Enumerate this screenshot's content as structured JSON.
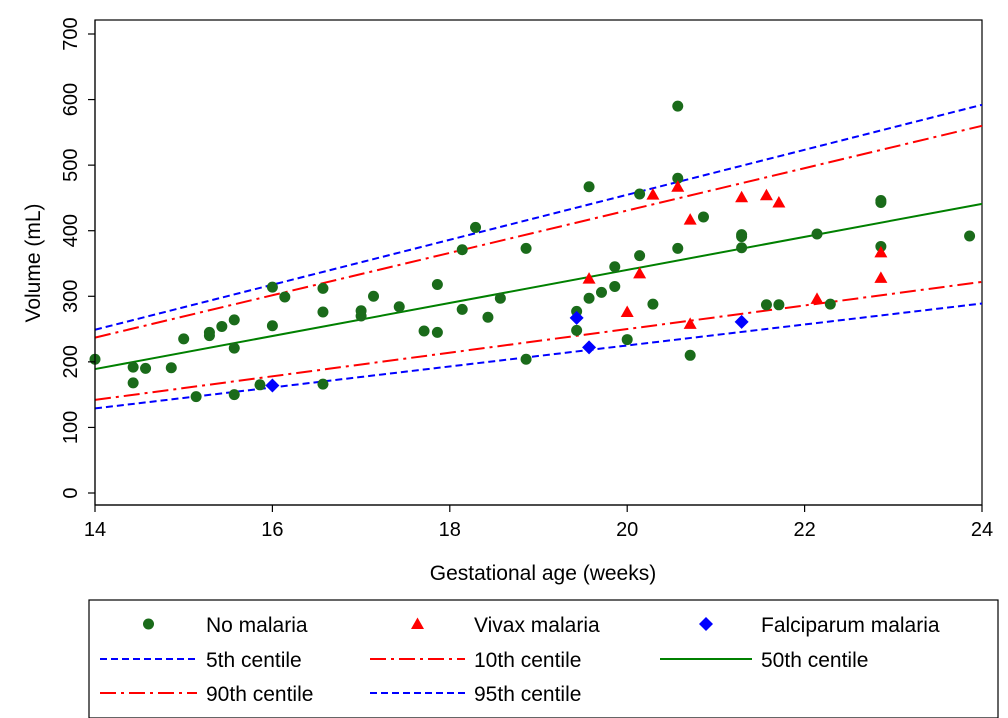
{
  "chart_data": {
    "type": "scatter",
    "title": "",
    "xlabel": "Gestational age (weeks)",
    "ylabel": "Volume (mL)",
    "xlim": [
      14,
      24
    ],
    "ylim": [
      0,
      700
    ],
    "xticks": [
      14,
      16,
      18,
      20,
      22,
      24
    ],
    "yticks": [
      0,
      100,
      200,
      300,
      400,
      500,
      600,
      700
    ],
    "grid": false,
    "legend_position": "bottom",
    "series": [
      {
        "name": "No malaria",
        "kind": "scatter",
        "marker": "circle",
        "color": "#1a6b1a",
        "points": [
          [
            14.0,
            204
          ],
          [
            14.43,
            168
          ],
          [
            14.43,
            192
          ],
          [
            14.57,
            190
          ],
          [
            14.86,
            191
          ],
          [
            15.0,
            235
          ],
          [
            15.14,
            147
          ],
          [
            15.29,
            240
          ],
          [
            15.29,
            245
          ],
          [
            15.43,
            254
          ],
          [
            15.57,
            264
          ],
          [
            15.57,
            221
          ],
          [
            15.57,
            150
          ],
          [
            15.86,
            165
          ],
          [
            16.0,
            255
          ],
          [
            16.0,
            314
          ],
          [
            16.14,
            299
          ],
          [
            16.57,
            312
          ],
          [
            16.57,
            276
          ],
          [
            16.57,
            166
          ],
          [
            17.0,
            278
          ],
          [
            17.0,
            270
          ],
          [
            17.14,
            300
          ],
          [
            17.43,
            284
          ],
          [
            17.71,
            247
          ],
          [
            17.86,
            245
          ],
          [
            17.86,
            318
          ],
          [
            18.14,
            280
          ],
          [
            18.14,
            371
          ],
          [
            18.29,
            405
          ],
          [
            18.43,
            268
          ],
          [
            18.57,
            297
          ],
          [
            18.86,
            373
          ],
          [
            18.86,
            204
          ],
          [
            19.43,
            277
          ],
          [
            19.43,
            248
          ],
          [
            19.57,
            297
          ],
          [
            19.57,
            467
          ],
          [
            19.71,
            306
          ],
          [
            19.86,
            315
          ],
          [
            19.86,
            345
          ],
          [
            20.0,
            234
          ],
          [
            20.14,
            362
          ],
          [
            20.14,
            456
          ],
          [
            20.29,
            288
          ],
          [
            20.57,
            590
          ],
          [
            20.57,
            480
          ],
          [
            20.57,
            373
          ],
          [
            20.71,
            210
          ],
          [
            20.86,
            421
          ],
          [
            21.29,
            391
          ],
          [
            21.29,
            394
          ],
          [
            21.29,
            374
          ],
          [
            21.57,
            287
          ],
          [
            21.71,
            287
          ],
          [
            22.14,
            395
          ],
          [
            22.29,
            288
          ],
          [
            22.86,
            443
          ],
          [
            22.86,
            446
          ],
          [
            22.86,
            376
          ],
          [
            23.86,
            392
          ]
        ]
      },
      {
        "name": "Vivax malaria",
        "kind": "scatter",
        "marker": "triangle",
        "color": "#ff0000",
        "points": [
          [
            19.57,
            327
          ],
          [
            20.0,
            276
          ],
          [
            20.14,
            335
          ],
          [
            20.29,
            455
          ],
          [
            20.57,
            467
          ],
          [
            20.71,
            258
          ],
          [
            20.71,
            417
          ],
          [
            21.29,
            451
          ],
          [
            21.57,
            454
          ],
          [
            21.71,
            443
          ],
          [
            22.14,
            296
          ],
          [
            22.86,
            367
          ],
          [
            22.86,
            328
          ]
        ]
      },
      {
        "name": "Falciparum malaria",
        "kind": "scatter",
        "marker": "diamond",
        "color": "#0000ff",
        "points": [
          [
            16.0,
            164
          ],
          [
            19.43,
            267
          ],
          [
            19.57,
            222
          ],
          [
            21.29,
            261
          ]
        ]
      },
      {
        "name": "5th centile",
        "kind": "line",
        "style": "dash",
        "color": "#0000ff",
        "points": [
          [
            14,
            129
          ],
          [
            24,
            289
          ]
        ]
      },
      {
        "name": "10th centile",
        "kind": "line",
        "style": "dashdot",
        "color": "#ff0000",
        "points": [
          [
            14,
            142
          ],
          [
            24,
            322
          ]
        ]
      },
      {
        "name": "50th centile",
        "kind": "line",
        "style": "solid",
        "color": "#008000",
        "points": [
          [
            14,
            189
          ],
          [
            24,
            441
          ]
        ]
      },
      {
        "name": "90th centile",
        "kind": "line",
        "style": "dashdot",
        "color": "#ff0000",
        "points": [
          [
            14,
            237
          ],
          [
            24,
            560
          ]
        ]
      },
      {
        "name": "95th centile",
        "kind": "line",
        "style": "dash",
        "color": "#0000ff",
        "points": [
          [
            14,
            249
          ],
          [
            24,
            592
          ]
        ]
      }
    ]
  }
}
